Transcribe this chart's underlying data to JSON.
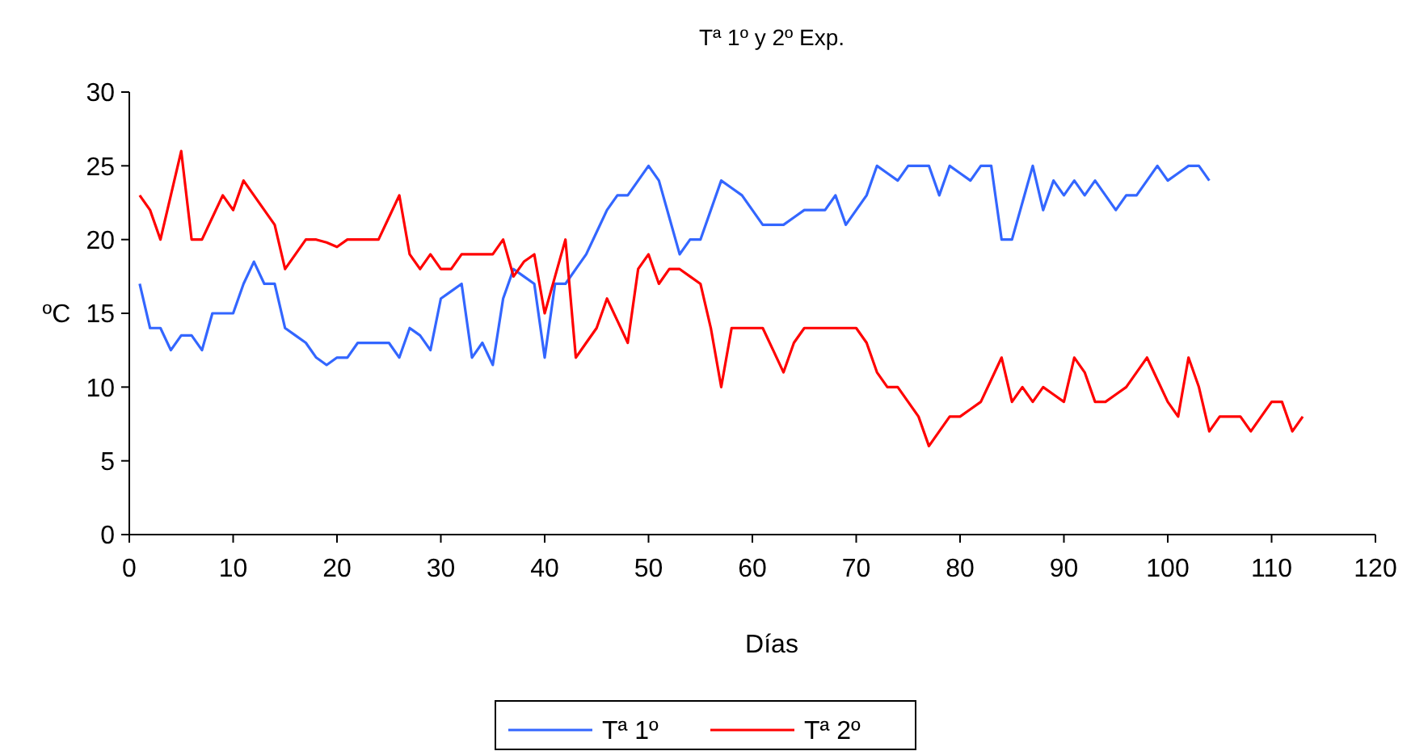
{
  "chart_data": {
    "type": "line",
    "title": "Tª 1º y 2º Exp.",
    "xlabel": "Días",
    "ylabel": "ºC",
    "xlim": [
      0,
      120
    ],
    "xticks": [
      0,
      10,
      20,
      30,
      40,
      50,
      60,
      70,
      80,
      90,
      100,
      110,
      120
    ],
    "ylim": [
      0,
      30
    ],
    "yticks": [
      0,
      5,
      10,
      15,
      20,
      25,
      30
    ],
    "grid": false,
    "legend": "bottom",
    "marker": "none",
    "line_style": "solid",
    "x": [
      1,
      2,
      3,
      4,
      5,
      6,
      7,
      8,
      9,
      10,
      11,
      12,
      13,
      14,
      15,
      16,
      17,
      18,
      19,
      20,
      21,
      22,
      23,
      24,
      25,
      26,
      27,
      28,
      29,
      30,
      31,
      32,
      33,
      34,
      35,
      36,
      37,
      38,
      39,
      40,
      41,
      42,
      43,
      44,
      45,
      46,
      47,
      48,
      49,
      50,
      51,
      52,
      53,
      54,
      55,
      56,
      57,
      58,
      59,
      60,
      61,
      62,
      63,
      64,
      65,
      66,
      67,
      68,
      69,
      70,
      71,
      72,
      73,
      74,
      75,
      76,
      77,
      78,
      79,
      80,
      81,
      82,
      83,
      84,
      85,
      86,
      87,
      88,
      89,
      90,
      91,
      92,
      93,
      94,
      95,
      96,
      97,
      98,
      99,
      100,
      101,
      102,
      103,
      104,
      105,
      106,
      107,
      108,
      109,
      110,
      111,
      112,
      113
    ],
    "series": [
      {
        "name": "Tª 1º",
        "color": "#3366ff",
        "values": [
          17,
          14,
          14,
          12.5,
          13.5,
          13.5,
          12.5,
          15,
          15,
          15,
          17,
          18.5,
          17,
          17,
          14,
          13.5,
          13,
          12,
          11.5,
          12,
          12,
          13,
          13,
          13,
          13,
          12,
          14,
          13.5,
          12.5,
          16,
          16.5,
          17,
          12,
          13,
          11.5,
          16,
          18,
          17.5,
          17,
          12,
          17,
          17,
          18,
          19,
          20.5,
          22,
          23,
          23,
          24,
          25,
          24,
          21.5,
          19,
          20,
          20,
          22,
          24,
          23.5,
          23,
          22,
          21,
          21,
          21,
          21.5,
          22,
          22,
          22,
          23,
          21,
          22,
          23,
          25,
          24.5,
          24,
          25,
          25,
          25,
          23,
          25,
          24.5,
          24,
          25,
          25,
          20,
          20,
          22.5,
          25,
          22,
          24,
          23,
          24,
          23,
          24,
          23,
          22,
          23,
          23,
          24,
          25,
          24,
          24.5,
          25,
          25,
          24,
          null,
          null,
          null,
          null,
          null,
          null,
          null,
          null,
          null
        ]
      },
      {
        "name": "Tª 2º",
        "color": "#ff0000",
        "values": [
          23,
          22,
          20,
          23,
          26,
          20,
          20,
          21.5,
          23,
          22,
          24,
          23,
          22,
          21,
          18,
          19,
          20,
          20,
          19.8,
          19.5,
          20,
          20,
          20,
          20,
          21.5,
          23,
          19,
          18,
          19,
          18,
          18,
          19,
          19,
          19,
          19,
          20,
          17.5,
          18.5,
          19,
          15,
          17.5,
          20,
          12,
          13,
          14,
          16,
          14.5,
          13,
          18,
          19,
          17,
          18,
          18,
          17.5,
          17,
          14,
          10,
          14,
          14,
          14,
          14,
          12.5,
          11,
          13,
          14,
          14,
          14,
          14,
          14,
          14,
          13,
          11,
          10,
          10,
          9,
          8,
          6,
          7,
          8,
          8,
          8.5,
          9,
          10.5,
          12,
          9,
          10,
          9,
          10,
          9.5,
          9,
          12,
          11,
          9,
          9,
          9.5,
          10,
          11,
          12,
          10.5,
          9,
          8,
          12,
          10,
          7,
          8,
          8,
          8,
          7,
          8,
          9,
          9,
          7,
          8
        ]
      }
    ]
  }
}
